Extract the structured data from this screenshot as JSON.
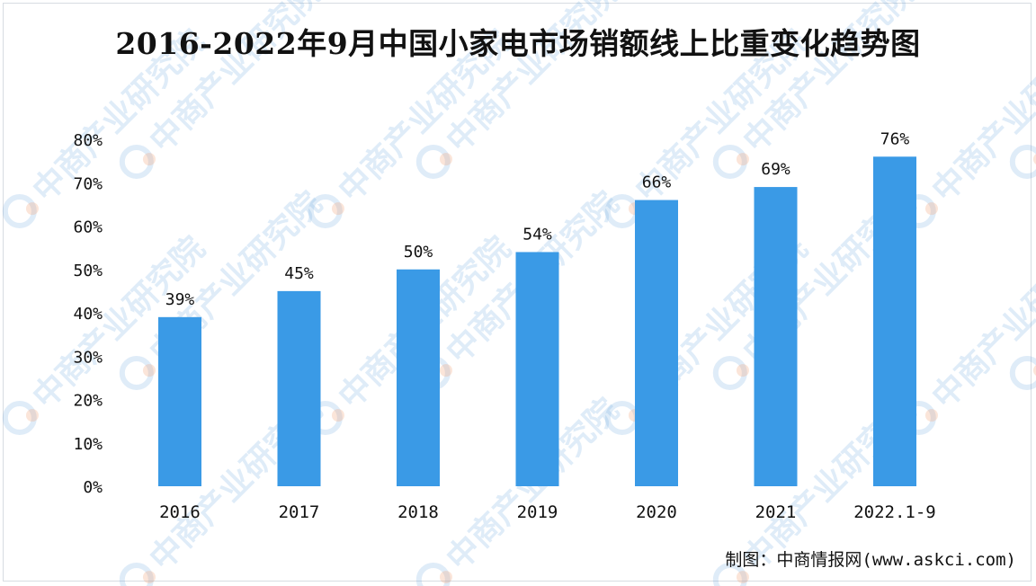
{
  "title": "2016-2022年9月中国小家电市场销额线上比重变化趋势图",
  "credit": "制图：中商情报网(www.askci.com)",
  "watermark_text": "中商产业研究院",
  "colors": {
    "bar": "#3a9ae6",
    "text": "#111111"
  },
  "chart_data": {
    "type": "bar",
    "title": "2016-2022年9月中国小家电市场销额线上比重变化趋势图",
    "categories": [
      "2016",
      "2017",
      "2018",
      "2019",
      "2020",
      "2021",
      "2022.1-9"
    ],
    "values": [
      39,
      45,
      50,
      54,
      66,
      69,
      76
    ],
    "data_labels": [
      "39%",
      "45%",
      "50%",
      "54%",
      "66%",
      "69%",
      "76%"
    ],
    "y_ticks": [
      "0%",
      "10%",
      "20%",
      "30%",
      "40%",
      "50%",
      "60%",
      "70%",
      "80%"
    ],
    "ylim": [
      0,
      80
    ],
    "xlabel": "",
    "ylabel": "",
    "grid": false,
    "legend": "none"
  }
}
